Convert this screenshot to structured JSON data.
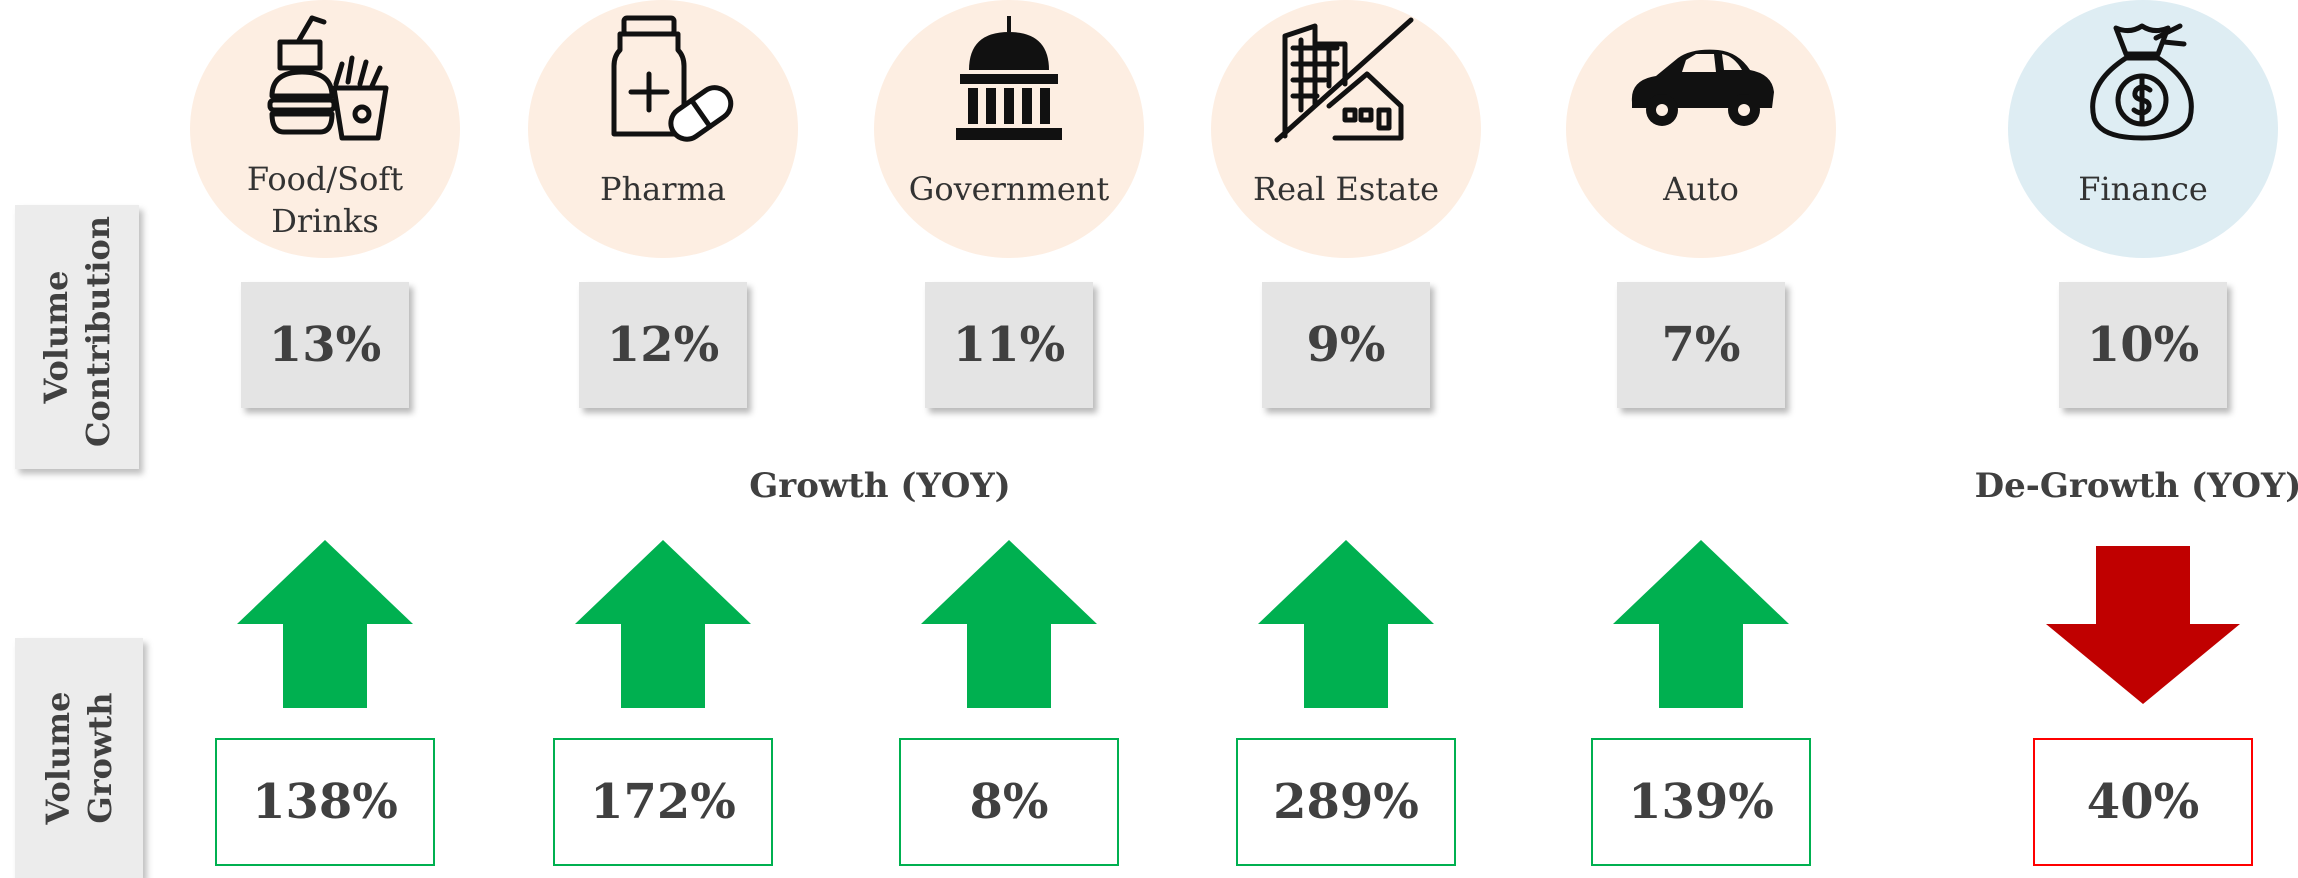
{
  "side_labels": {
    "contribution": "Volume Contribution",
    "growth": "Volume Growth"
  },
  "growth_group": {
    "title": "Growth (YOY)",
    "items": [
      {
        "label": "Food/Soft Drinks",
        "contribution": "13%",
        "growth": "138%"
      },
      {
        "label": "Pharma",
        "contribution": "12%",
        "growth": "172%"
      },
      {
        "label": "Government",
        "contribution": "11%",
        "growth": "8%"
      },
      {
        "label": "Real Estate",
        "contribution": "9%",
        "growth": "289%"
      },
      {
        "label": "Auto",
        "contribution": "7%",
        "growth": "139%"
      }
    ]
  },
  "degrowth_group": {
    "title": "De-Growth (YOY)",
    "items": [
      {
        "label": "Finance",
        "contribution": "10%",
        "growth": "40%"
      }
    ]
  }
}
